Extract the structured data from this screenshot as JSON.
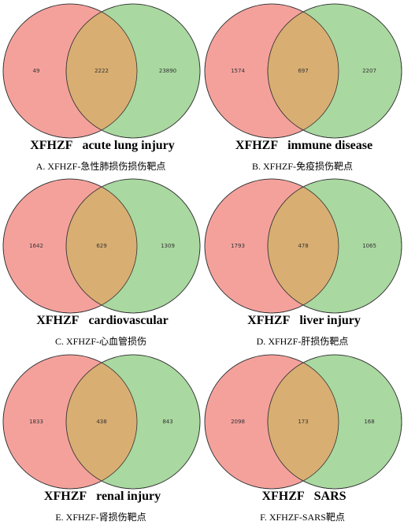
{
  "chart_data": [
    {
      "type": "venn",
      "sets": [
        "XFHZF",
        "acute lung injury"
      ],
      "values": [
        49,
        2222,
        23890
      ],
      "caption": "A. XFHZF-急性肺损伤损伤靶点",
      "colors": [
        "#f4a19c",
        "#a9d8a0",
        "#d9ae72"
      ]
    },
    {
      "type": "venn",
      "sets": [
        "XFHZF",
        "immune disease"
      ],
      "values": [
        1574,
        697,
        2207
      ],
      "caption": "B. XFHZF-免疫损伤靶点",
      "colors": [
        "#f4a19c",
        "#a9d8a0",
        "#d9ae72"
      ]
    },
    {
      "type": "venn",
      "sets": [
        "XFHZF",
        "cardiovascular"
      ],
      "values": [
        1642,
        629,
        1309
      ],
      "caption": "C. XFHZF-心血管损伤",
      "colors": [
        "#f4a19c",
        "#a9d8a0",
        "#d9ae72"
      ]
    },
    {
      "type": "venn",
      "sets": [
        "XFHZF",
        "liver injury"
      ],
      "values": [
        1793,
        478,
        1065
      ],
      "caption": "D. XFHZF-肝损伤靶点",
      "colors": [
        "#f4a19c",
        "#a9d8a0",
        "#d9ae72"
      ]
    },
    {
      "type": "venn",
      "sets": [
        "XFHZF",
        "renal injury"
      ],
      "values": [
        1833,
        438,
        843
      ],
      "caption": "E. XFHZF-肾损伤靶点",
      "colors": [
        "#f4a19c",
        "#a9d8a0",
        "#d9ae72"
      ]
    },
    {
      "type": "venn",
      "sets": [
        "XFHZF",
        "SARS"
      ],
      "values": [
        2098,
        173,
        168
      ],
      "caption": "F. XFHZF-SARS靶点",
      "colors": [
        "#f4a19c",
        "#a9d8a0",
        "#d9ae72"
      ]
    }
  ]
}
